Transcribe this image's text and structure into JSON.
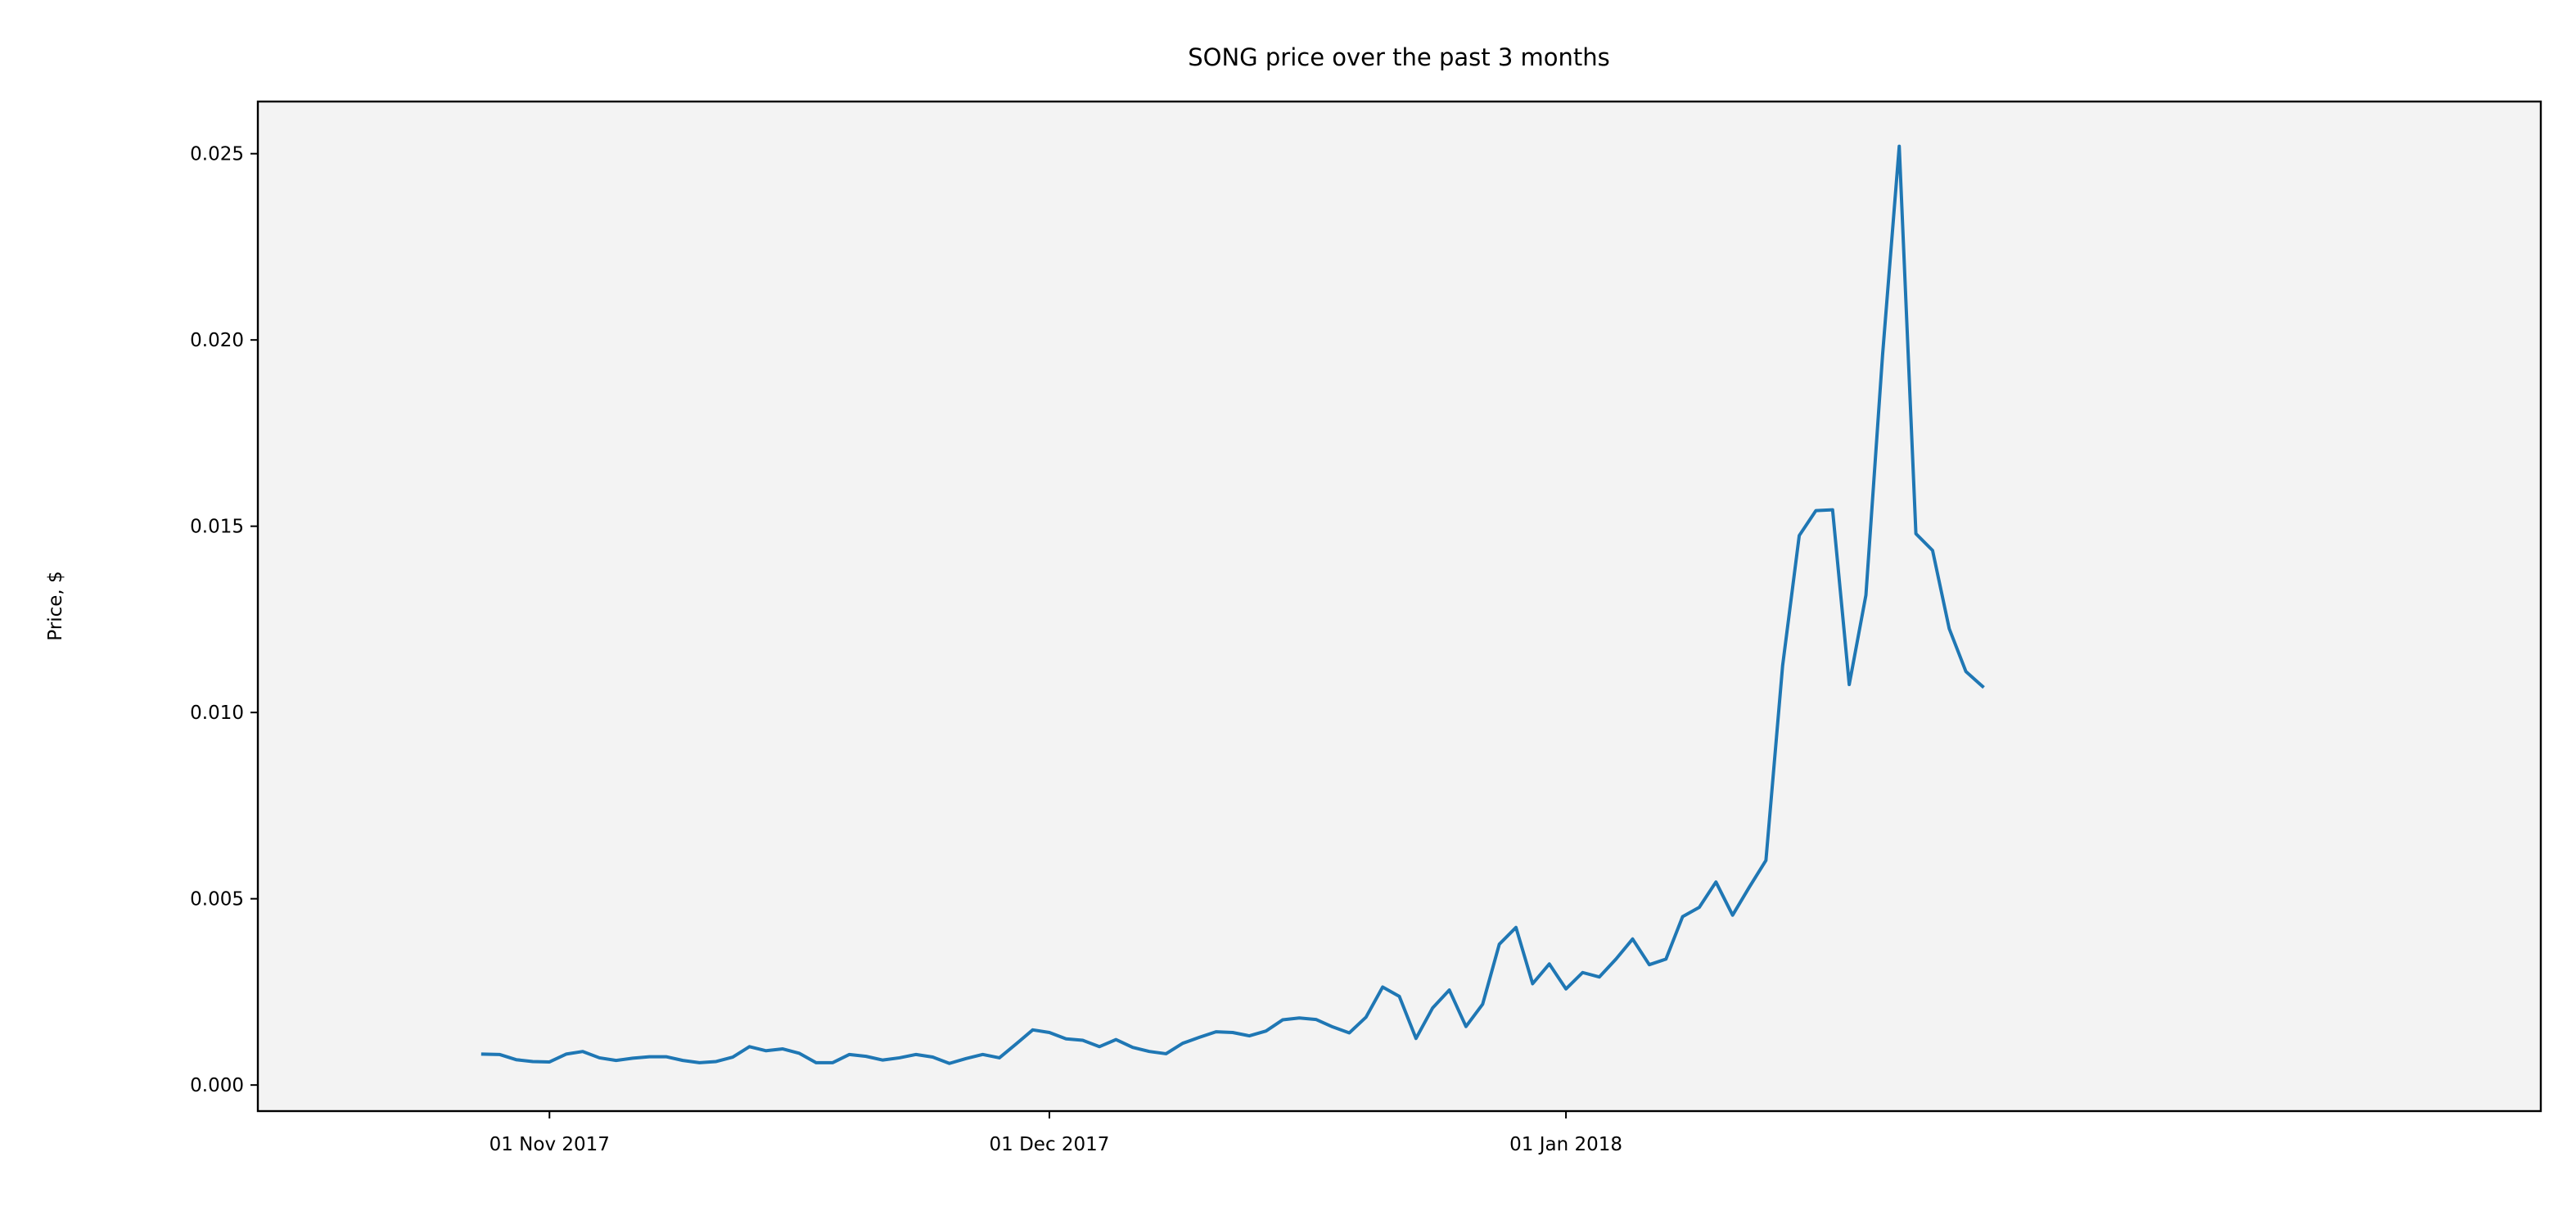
{
  "chart_data": {
    "type": "line",
    "title": "SONG price over the past 3 months",
    "xlabel": "",
    "ylabel": "Price, $",
    "ylim": [
      -0.0007,
      0.0264
    ],
    "xlim": [
      -13.5,
      123.5
    ],
    "x_ticks": [
      {
        "day": 4,
        "label": "01 Nov 2017"
      },
      {
        "day": 34,
        "label": "01 Dec 2017"
      },
      {
        "day": 65,
        "label": "01 Jan 2018"
      }
    ],
    "y_ticks": [
      {
        "value": 0.0,
        "label": "0.000"
      },
      {
        "value": 0.005,
        "label": "0.005"
      },
      {
        "value": 0.01,
        "label": "0.010"
      },
      {
        "value": 0.015,
        "label": "0.015"
      },
      {
        "value": 0.02,
        "label": "0.020"
      },
      {
        "value": 0.025,
        "label": "0.025"
      }
    ],
    "series": [
      {
        "name": "SONG price",
        "color": "#1f77b4",
        "x_start_label": "2017-10-28",
        "x_step_days": 1,
        "values": [
          0.00083,
          0.00082,
          0.00068,
          0.00063,
          0.00062,
          0.00083,
          0.0009,
          0.00073,
          0.00066,
          0.00072,
          0.00076,
          0.00076,
          0.00066,
          0.0006,
          0.00063,
          0.00075,
          0.00103,
          0.00092,
          0.00097,
          0.00085,
          0.0006,
          0.0006,
          0.00082,
          0.00077,
          0.00067,
          0.00073,
          0.00082,
          0.00075,
          0.00058,
          0.00071,
          0.00082,
          0.00073,
          0.0011,
          0.00148,
          0.00141,
          0.00124,
          0.0012,
          0.00103,
          0.00122,
          0.00101,
          0.0009,
          0.00084,
          0.00112,
          0.00128,
          0.00143,
          0.00141,
          0.00132,
          0.00145,
          0.00175,
          0.0018,
          0.00176,
          0.00156,
          0.0014,
          0.00182,
          0.00263,
          0.00238,
          0.00125,
          0.00207,
          0.00255,
          0.00157,
          0.00217,
          0.00378,
          0.00423,
          0.00272,
          0.00325,
          0.00258,
          0.00302,
          0.0029,
          0.00338,
          0.00392,
          0.00323,
          0.00338,
          0.00452,
          0.00477,
          0.00545,
          0.00456,
          0.00531,
          0.00603,
          0.01125,
          0.01475,
          0.01542,
          0.01544,
          0.01075,
          0.01315,
          0.0196,
          0.0252,
          0.0148,
          0.01435,
          0.01225,
          0.0111,
          0.0107
        ]
      }
    ]
  }
}
